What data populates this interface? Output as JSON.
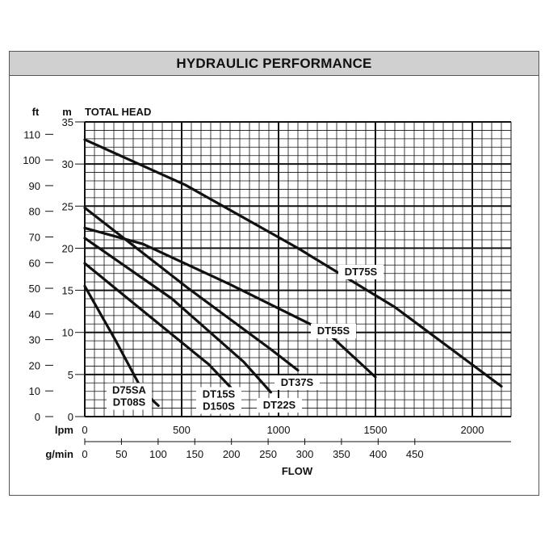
{
  "chart_data": {
    "type": "line",
    "title": "HYDRAULIC PERFORMANCE",
    "ylabel": "TOTAL HEAD",
    "xlabel": "FLOW",
    "y_unit_left": "ft",
    "y_unit_right": "m",
    "x_unit_primary": "lpm",
    "x_unit_secondary": "g/min",
    "xlim_lpm": [
      0,
      2200
    ],
    "ylim_m": [
      0,
      35
    ],
    "x_ticks_lpm": [
      "0",
      "500",
      "1000",
      "1500",
      "2000"
    ],
    "x_ticks_gpm": [
      "0",
      "50",
      "100",
      "150",
      "200",
      "250",
      "300",
      "350",
      "400",
      "450"
    ],
    "y_ticks_m": [
      "0",
      "5",
      "10",
      "15",
      "20",
      "25",
      "30",
      "35"
    ],
    "y_ticks_ft": [
      "0",
      "10",
      "20",
      "30",
      "40",
      "50",
      "60",
      "70",
      "80",
      "90",
      "100",
      "110"
    ],
    "grid": true,
    "series": [
      {
        "name": "D75SA",
        "label_lines": [
          "D75SA",
          "DT08S"
        ],
        "points": [
          [
            0,
            15.5
          ],
          [
            160,
            9
          ],
          [
            300,
            3
          ],
          [
            380,
            1.3
          ]
        ]
      },
      {
        "name": "DT15S",
        "label_lines": [
          "DT15S",
          "D150S"
        ],
        "points": [
          [
            0,
            18.2
          ],
          [
            330,
            12
          ],
          [
            640,
            6.2
          ],
          [
            760,
            3.3
          ]
        ]
      },
      {
        "name": "DT22S",
        "points": [
          [
            0,
            21.2
          ],
          [
            450,
            14
          ],
          [
            820,
            6.5
          ],
          [
            960,
            2.9
          ]
        ]
      },
      {
        "name": "DT37S",
        "points": [
          [
            0,
            24.8
          ],
          [
            530,
            15.3
          ],
          [
            960,
            8
          ],
          [
            1100,
            5.5
          ]
        ]
      },
      {
        "name": "DT55S",
        "points": [
          [
            0,
            22.4
          ],
          [
            300,
            20.5
          ],
          [
            750,
            15.7
          ],
          [
            1250,
            10
          ],
          [
            1500,
            4.7
          ]
        ]
      },
      {
        "name": "DT75S",
        "points": [
          [
            0,
            32.9
          ],
          [
            520,
            27.5
          ],
          [
            1100,
            20
          ],
          [
            1600,
            13
          ],
          [
            2150,
            3.6
          ]
        ]
      }
    ]
  }
}
